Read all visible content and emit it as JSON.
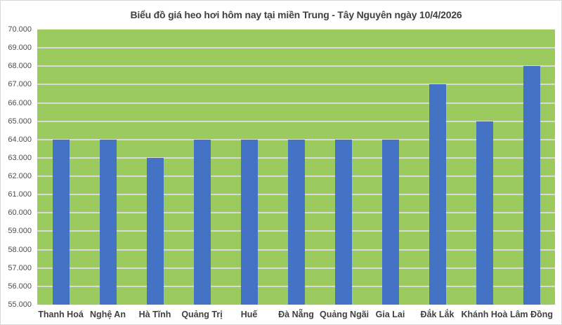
{
  "title": "Biểu đồ giá heo hơi hôm nay tại miền Trung - Tây Nguyên ngày 10/4/2026",
  "colors": {
    "bar": "#4472C4",
    "plot_background": "#9BCA5E",
    "gridline": "#D9D9D9",
    "title_text": "#404040",
    "category_label_text": "#404040",
    "tick_label_text": "#4D4D4D",
    "chart_border": "#D9D9D9",
    "page_background": "#FFFFFF"
  },
  "chart_data": {
    "type": "bar",
    "title": "Biểu đồ giá heo hơi hôm nay tại miền Trung - Tây Nguyên ngày 10/4/2026",
    "categories": [
      "Thanh Hoá",
      "Nghệ An",
      "Hà Tĩnh",
      "Quảng Trị",
      "Huế",
      "Đà Nẵng",
      "Quảng Ngãi",
      "Gia Lai",
      "Đắk Lắk",
      "Khánh Hoà",
      "Lâm Đồng"
    ],
    "values": [
      64000,
      64000,
      63000,
      64000,
      64000,
      64000,
      64000,
      64000,
      67000,
      65000,
      68000
    ],
    "xlabel": "",
    "ylabel": "",
    "ylim": [
      55000,
      70000
    ],
    "ytick_step": 1000,
    "ytick_labels": [
      "55.000",
      "56.000",
      "57.000",
      "58.000",
      "59.000",
      "60.000",
      "61.000",
      "62.000",
      "63.000",
      "64.000",
      "65.000",
      "66.000",
      "67.000",
      "68.000",
      "69.000",
      "70.000"
    ],
    "grid": true,
    "legend": false
  }
}
